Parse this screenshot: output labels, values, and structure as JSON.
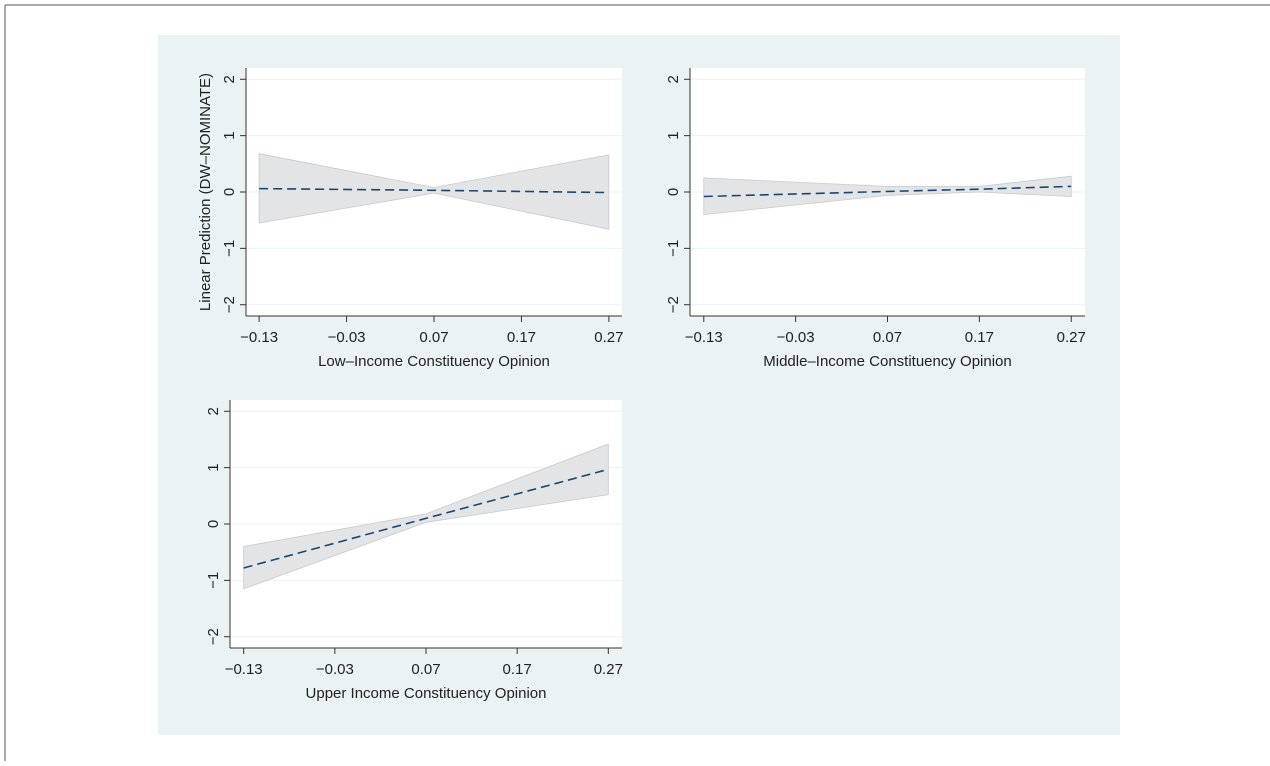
{
  "chart_data": [
    {
      "type": "line",
      "ylabel": "Linear Prediction (DW–NOMINATE)",
      "xlabel": "Low–Income Constituency Opinion",
      "x": [
        -0.13,
        0.07,
        0.27
      ],
      "values": [
        0.06,
        0.03,
        -0.01
      ],
      "lower": [
        -0.55,
        -0.02,
        -0.66
      ],
      "upper": [
        0.68,
        0.08,
        0.66
      ],
      "color": "#1a476f",
      "band_color": "#e3e4e6",
      "xlim": [
        -0.145,
        0.285
      ],
      "ylim": [
        -2.2,
        2.2
      ],
      "xticks": [
        {
          "value": -0.13,
          "label": "−0.13"
        },
        {
          "value": -0.03,
          "label": "−0.03"
        },
        0.07,
        0.17,
        0.27
      ],
      "yticks": [
        {
          "value": -2,
          "label": "−2"
        },
        {
          "value": -1,
          "label": "−1"
        },
        0,
        1,
        2
      ],
      "grid": true
    },
    {
      "type": "line",
      "xlabel": "Middle–Income Constituency Opinion",
      "x": [
        -0.13,
        0.07,
        0.17,
        0.27
      ],
      "values": [
        -0.08,
        0.01,
        0.05,
        0.1
      ],
      "lower": [
        -0.4,
        -0.06,
        0.0,
        -0.08
      ],
      "upper": [
        0.25,
        0.1,
        0.1,
        0.28
      ],
      "color": "#1a476f",
      "band_color": "#e3e4e6",
      "xlim": [
        -0.145,
        0.285
      ],
      "ylim": [
        -2.2,
        2.2
      ],
      "xticks": [
        {
          "value": -0.13,
          "label": "−0.13"
        },
        {
          "value": -0.03,
          "label": "−0.03"
        },
        0.07,
        0.17,
        0.27
      ],
      "yticks": [
        {
          "value": -2,
          "label": "−2"
        },
        {
          "value": -1,
          "label": "−1"
        },
        0,
        1,
        2
      ],
      "grid": true
    },
    {
      "type": "line",
      "xlabel": "Upper Income Constituency Opinion",
      "x": [
        -0.13,
        0.07,
        0.27
      ],
      "values": [
        -0.78,
        0.1,
        0.97
      ],
      "lower": [
        -1.15,
        0.03,
        0.52
      ],
      "upper": [
        -0.4,
        0.18,
        1.42
      ],
      "color": "#1a476f",
      "band_color": "#e3e4e6",
      "xlim": [
        -0.145,
        0.285
      ],
      "ylim": [
        -2.2,
        2.2
      ],
      "xticks": [
        {
          "value": -0.13,
          "label": "−0.13"
        },
        {
          "value": -0.03,
          "label": "−0.03"
        },
        0.07,
        0.17,
        0.27
      ],
      "yticks": [
        {
          "value": -2,
          "label": "−2"
        },
        {
          "value": -1,
          "label": "−1"
        },
        0,
        1,
        2
      ],
      "grid": true
    }
  ]
}
